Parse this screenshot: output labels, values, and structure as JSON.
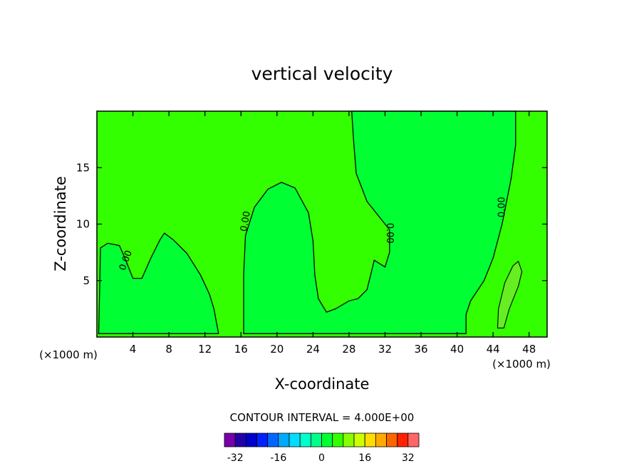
{
  "chart_data": {
    "type": "heatmap",
    "title": "vertical velocity",
    "xlabel": "X-coordinate",
    "ylabel": "Z-coordinate",
    "x_unit_left": "(×1000 m)",
    "x_unit_right": "(×1000 m)",
    "xlim": [
      0,
      50
    ],
    "ylim": [
      0,
      20
    ],
    "x_ticks": [
      4,
      8,
      12,
      16,
      20,
      24,
      28,
      32,
      36,
      40,
      44,
      48
    ],
    "y_ticks": [
      5,
      10,
      15
    ],
    "contour_interval_text": "CONTOUR INTERVAL = 4.000E+00",
    "contour_labels": [
      "0.00",
      "0.00",
      "0.00",
      "0.00"
    ],
    "colors": {
      "background_field": "#33ff00",
      "zero_to_positive": "#00ff33",
      "positive_4_to_8": "#66ee22"
    },
    "colorbar": {
      "levels": [
        -36,
        -32,
        -28,
        -24,
        -20,
        -16,
        -12,
        -8,
        -4,
        0,
        4,
        8,
        12,
        16,
        20,
        24,
        28,
        32,
        36
      ],
      "colors": [
        "#7700aa",
        "#2200aa",
        "#0000cc",
        "#0022ff",
        "#0066ff",
        "#00aaff",
        "#00ddff",
        "#00ffcc",
        "#00ff88",
        "#00ff33",
        "#33ff00",
        "#88ff00",
        "#ccff00",
        "#ffdd00",
        "#ffaa00",
        "#ff6600",
        "#ff2200",
        "#ff6666",
        "#ffaaaa"
      ],
      "tick_labels": [
        "-32",
        "-16",
        "0",
        "16",
        "32"
      ],
      "tick_values": [
        -32,
        -16,
        0,
        16,
        32
      ]
    }
  }
}
